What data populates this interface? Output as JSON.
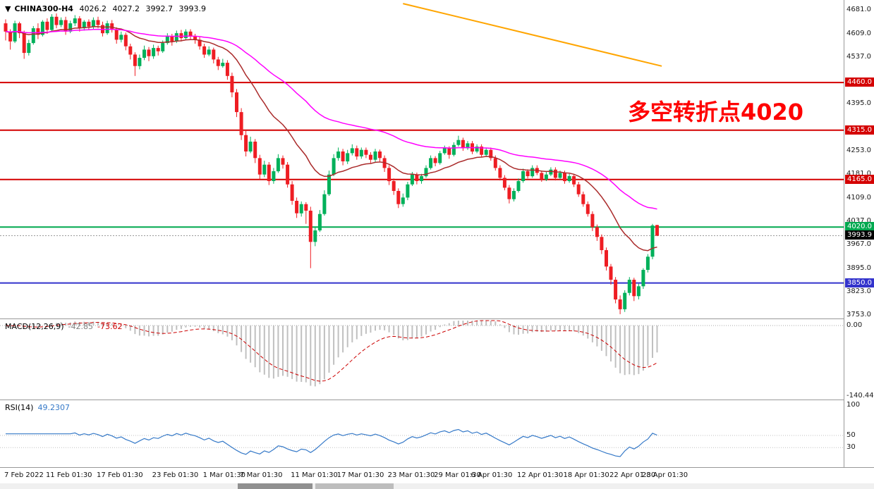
{
  "header": {
    "arrow": "▼",
    "symbol": "CHINA300-H4",
    "open": "4026.2",
    "high": "4027.2",
    "low": "3992.7",
    "close": "3993.9"
  },
  "annotation": {
    "text": "多空转折点4020",
    "color": "#FF0000"
  },
  "macd_panel": {
    "title": "MACD(12,26,9)",
    "main_value": "-42.85",
    "signal_value": "-73.62"
  },
  "rsi_panel": {
    "title": "RSI(14)",
    "value": "49.2307"
  },
  "chart_data": {
    "type": "candlestick",
    "symbol": "CHINA300-H4",
    "timeframe": "H4",
    "title": "CHINA300-H4 4026.2 4027.2 3992.7 3993.9",
    "y_range": [
      3742,
      4711
    ],
    "colors": {
      "up": "#00B05A",
      "down": "#EE1D23",
      "bid_line": "#999999",
      "background": "#FFFFFF"
    },
    "price_axis_ticks": [
      {
        "v": 4681,
        "t": "4681.0"
      },
      {
        "v": 4609,
        "t": "4609.0"
      },
      {
        "v": 4537,
        "t": "4537.0"
      },
      {
        "v": 4395,
        "t": "4395.0"
      },
      {
        "v": 4253,
        "t": "4253.0"
      },
      {
        "v": 4181,
        "t": "4181.0"
      },
      {
        "v": 4109,
        "t": "4109.0"
      },
      {
        "v": 4037,
        "t": "4037.0"
      },
      {
        "v": 3967,
        "t": "3967.0"
      },
      {
        "v": 3895,
        "t": "3895.0"
      },
      {
        "v": 3823,
        "t": "3823.0"
      },
      {
        "v": 3753,
        "t": "3753.0"
      }
    ],
    "h_levels": [
      {
        "value": 4460,
        "label": "4460.0",
        "color": "#D40000"
      },
      {
        "value": 4315,
        "label": "4315.0",
        "color": "#D40000"
      },
      {
        "value": 4165,
        "label": "4165.0",
        "color": "#D40000"
      },
      {
        "value": 4020,
        "label": "4020.0",
        "color": "#00A84F"
      },
      {
        "value": 3850,
        "label": "3850.0",
        "color": "#3333CC"
      }
    ],
    "bid": {
      "value": 3993.9,
      "label": "3993.9",
      "color": "#000000"
    },
    "overlays": {
      "mas": [
        {
          "period": 20,
          "color": "#AA2B2B"
        },
        {
          "period": 55,
          "color": "#FF00FF"
        }
      ],
      "trendline": {
        "color": "#FFA500",
        "from": {
          "i": 86,
          "price": 4700
        },
        "to": {
          "i": 142,
          "price": 4510
        }
      }
    },
    "indicators": {
      "macd": {
        "label": "MACD(12,26,9)",
        "fast": 12,
        "slow": 26,
        "signal": 9,
        "main_value": -42.85,
        "signal_value": -73.62,
        "hist_color": "#C0C0C0",
        "signal_color": "#CC0000",
        "axis": [
          {
            "v": 0,
            "t": "0.00"
          },
          {
            "v": -140.44,
            "t": "-140.44"
          }
        ]
      },
      "rsi": {
        "label": "RSI(14)",
        "period": 14,
        "value": 49.2307,
        "color": "#3579C8",
        "levels": [
          50,
          30
        ],
        "axis": [
          {
            "v": 100,
            "t": "100"
          },
          {
            "v": 50,
            "t": "50"
          },
          {
            "v": 30,
            "t": "30"
          }
        ]
      }
    },
    "x_labels": [
      {
        "i": 0,
        "t": "7 Feb 2022"
      },
      {
        "i": 9,
        "t": "11 Feb 01:30"
      },
      {
        "i": 20,
        "t": "17 Feb 01:30"
      },
      {
        "i": 32,
        "t": "23 Feb 01:30"
      },
      {
        "i": 43,
        "t": "1 Mar 01:30"
      },
      {
        "i": 51,
        "t": "7 Mar 01:30"
      },
      {
        "i": 62,
        "t": "11 Mar 01:30"
      },
      {
        "i": 72,
        "t": "17 Mar 01:30"
      },
      {
        "i": 83,
        "t": "23 Mar 01:30"
      },
      {
        "i": 93,
        "t": "29 Mar 01:30"
      },
      {
        "i": 101,
        "t": "6 Apr 01:30"
      },
      {
        "i": 111,
        "t": "12 Apr 01:30"
      },
      {
        "i": 121,
        "t": "18 Apr 01:30"
      },
      {
        "i": 131,
        "t": "22 Apr 01:30"
      },
      {
        "i": 138,
        "t": "28 Apr 01:30"
      }
    ],
    "candles": [
      [
        4640,
        4652,
        4588,
        4615
      ],
      [
        4615,
        4622,
        4560,
        4585
      ],
      [
        4585,
        4648,
        4580,
        4640
      ],
      [
        4640,
        4645,
        4595,
        4610
      ],
      [
        4610,
        4618,
        4532,
        4550
      ],
      [
        4550,
        4590,
        4542,
        4580
      ],
      [
        4580,
        4632,
        4575,
        4625
      ],
      [
        4625,
        4640,
        4592,
        4605
      ],
      [
        4605,
        4650,
        4600,
        4645
      ],
      [
        4645,
        4655,
        4608,
        4620
      ],
      [
        4620,
        4668,
        4615,
        4660
      ],
      [
        4660,
        4670,
        4625,
        4635
      ],
      [
        4635,
        4658,
        4628,
        4650
      ],
      [
        4650,
        4660,
        4605,
        4615
      ],
      [
        4615,
        4648,
        4610,
        4640
      ],
      [
        4640,
        4665,
        4632,
        4655
      ],
      [
        4655,
        4662,
        4615,
        4625
      ],
      [
        4625,
        4650,
        4618,
        4645
      ],
      [
        4645,
        4652,
        4620,
        4630
      ],
      [
        4630,
        4658,
        4622,
        4650
      ],
      [
        4650,
        4660,
        4625,
        4635
      ],
      [
        4635,
        4645,
        4600,
        4610
      ],
      [
        4610,
        4648,
        4605,
        4640
      ],
      [
        4640,
        4650,
        4612,
        4620
      ],
      [
        4620,
        4628,
        4578,
        4590
      ],
      [
        4590,
        4615,
        4582,
        4605
      ],
      [
        4605,
        4612,
        4558,
        4570
      ],
      [
        4570,
        4578,
        4530,
        4545
      ],
      [
        4545,
        4552,
        4480,
        4510
      ],
      [
        4510,
        4545,
        4500,
        4535
      ],
      [
        4535,
        4572,
        4528,
        4560
      ],
      [
        4560,
        4568,
        4525,
        4540
      ],
      [
        4540,
        4575,
        4532,
        4565
      ],
      [
        4565,
        4572,
        4542,
        4555
      ],
      [
        4555,
        4588,
        4550,
        4580
      ],
      [
        4580,
        4610,
        4575,
        4600
      ],
      [
        4600,
        4608,
        4572,
        4585
      ],
      [
        4585,
        4618,
        4580,
        4610
      ],
      [
        4610,
        4620,
        4585,
        4595
      ],
      [
        4595,
        4622,
        4590,
        4615
      ],
      [
        4615,
        4622,
        4592,
        4600
      ],
      [
        4600,
        4608,
        4578,
        4590
      ],
      [
        4590,
        4598,
        4560,
        4570
      ],
      [
        4570,
        4578,
        4535,
        4545
      ],
      [
        4545,
        4570,
        4540,
        4560
      ],
      [
        4560,
        4566,
        4518,
        4530
      ],
      [
        4530,
        4538,
        4498,
        4510
      ],
      [
        4510,
        4532,
        4505,
        4520
      ],
      [
        4520,
        4528,
        4468,
        4480
      ],
      [
        4480,
        4490,
        4415,
        4430
      ],
      [
        4430,
        4440,
        4355,
        4370
      ],
      [
        4370,
        4382,
        4285,
        4300
      ],
      [
        4300,
        4315,
        4235,
        4250
      ],
      [
        4250,
        4295,
        4245,
        4280
      ],
      [
        4280,
        4288,
        4215,
        4230
      ],
      [
        4230,
        4240,
        4165,
        4180
      ],
      [
        4180,
        4222,
        4172,
        4210
      ],
      [
        4210,
        4218,
        4148,
        4160
      ],
      [
        4160,
        4200,
        4152,
        4190
      ],
      [
        4190,
        4242,
        4185,
        4230
      ],
      [
        4230,
        4238,
        4198,
        4210
      ],
      [
        4210,
        4218,
        4140,
        4150
      ],
      [
        4150,
        4160,
        4088,
        4100
      ],
      [
        4100,
        4110,
        4048,
        4062
      ],
      [
        4062,
        4098,
        4052,
        4090
      ],
      [
        4090,
        4096,
        4030,
        4070
      ],
      [
        4070,
        4082,
        3895,
        3975
      ],
      [
        3975,
        4022,
        3962,
        4010
      ],
      [
        4010,
        4072,
        4005,
        4060
      ],
      [
        4060,
        4132,
        4055,
        4120
      ],
      [
        4120,
        4192,
        4115,
        4180
      ],
      [
        4180,
        4242,
        4175,
        4230
      ],
      [
        4230,
        4262,
        4222,
        4250
      ],
      [
        4250,
        4258,
        4208,
        4220
      ],
      [
        4220,
        4255,
        4212,
        4245
      ],
      [
        4245,
        4272,
        4238,
        4260
      ],
      [
        4260,
        4268,
        4225,
        4235
      ],
      [
        4235,
        4262,
        4228,
        4255
      ],
      [
        4255,
        4262,
        4230,
        4240
      ],
      [
        4240,
        4248,
        4215,
        4225
      ],
      [
        4225,
        4258,
        4218,
        4250
      ],
      [
        4250,
        4256,
        4220,
        4230
      ],
      [
        4230,
        4238,
        4188,
        4200
      ],
      [
        4200,
        4208,
        4148,
        4160
      ],
      [
        4160,
        4168,
        4118,
        4130
      ],
      [
        4130,
        4138,
        4078,
        4090
      ],
      [
        4090,
        4122,
        4082,
        4110
      ],
      [
        4110,
        4158,
        4102,
        4150
      ],
      [
        4150,
        4188,
        4145,
        4180
      ],
      [
        4180,
        4186,
        4150,
        4160
      ],
      [
        4160,
        4182,
        4152,
        4175
      ],
      [
        4175,
        4208,
        4170,
        4200
      ],
      [
        4200,
        4238,
        4195,
        4230
      ],
      [
        4230,
        4236,
        4205,
        4215
      ],
      [
        4215,
        4252,
        4210,
        4245
      ],
      [
        4245,
        4268,
        4240,
        4260
      ],
      [
        4260,
        4266,
        4228,
        4240
      ],
      [
        4240,
        4278,
        4235,
        4270
      ],
      [
        4270,
        4298,
        4265,
        4285
      ],
      [
        4285,
        4292,
        4252,
        4260
      ],
      [
        4260,
        4282,
        4255,
        4275
      ],
      [
        4275,
        4282,
        4242,
        4250
      ],
      [
        4250,
        4272,
        4245,
        4265
      ],
      [
        4265,
        4272,
        4232,
        4240
      ],
      [
        4240,
        4262,
        4235,
        4255
      ],
      [
        4255,
        4262,
        4222,
        4230
      ],
      [
        4230,
        4238,
        4192,
        4200
      ],
      [
        4200,
        4208,
        4162,
        4170
      ],
      [
        4170,
        4178,
        4132,
        4140
      ],
      [
        4140,
        4148,
        4092,
        4105
      ],
      [
        4105,
        4138,
        4098,
        4130
      ],
      [
        4130,
        4168,
        4125,
        4160
      ],
      [
        4160,
        4198,
        4155,
        4190
      ],
      [
        4190,
        4196,
        4168,
        4175
      ],
      [
        4175,
        4208,
        4170,
        4200
      ],
      [
        4200,
        4208,
        4178,
        4185
      ],
      [
        4185,
        4192,
        4158,
        4165
      ],
      [
        4165,
        4188,
        4160,
        4180
      ],
      [
        4180,
        4202,
        4175,
        4195
      ],
      [
        4195,
        4202,
        4162,
        4170
      ],
      [
        4170,
        4192,
        4165,
        4185
      ],
      [
        4185,
        4192,
        4152,
        4160
      ],
      [
        4160,
        4182,
        4155,
        4175
      ],
      [
        4175,
        4182,
        4142,
        4150
      ],
      [
        4150,
        4158,
        4112,
        4120
      ],
      [
        4120,
        4128,
        4082,
        4090
      ],
      [
        4090,
        4098,
        4052,
        4060
      ],
      [
        4060,
        4068,
        4008,
        4020
      ],
      [
        4020,
        4028,
        3978,
        3990
      ],
      [
        3990,
        3998,
        3938,
        3950
      ],
      [
        3950,
        3958,
        3888,
        3900
      ],
      [
        3900,
        3908,
        3845,
        3860
      ],
      [
        3860,
        3868,
        3788,
        3800
      ],
      [
        3800,
        3812,
        3755,
        3770
      ],
      [
        3770,
        3828,
        3762,
        3820
      ],
      [
        3820,
        3868,
        3812,
        3860
      ],
      [
        3860,
        3866,
        3795,
        3810
      ],
      [
        3810,
        3848,
        3800,
        3840
      ],
      [
        3840,
        3895,
        3832,
        3890
      ],
      [
        3890,
        3938,
        3882,
        3930
      ],
      [
        3930,
        4030,
        3922,
        4025
      ],
      [
        4026.2,
        4027.2,
        3992.7,
        3993.9
      ]
    ]
  }
}
